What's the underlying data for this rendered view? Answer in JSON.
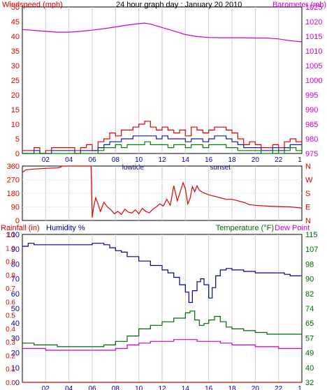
{
  "page": {
    "title": "24 hour graph day : January 20 2010"
  },
  "colors": {
    "windspeed": "#dd0000",
    "windspeed_avg": "#1a1aa6",
    "windspeed_low": "#008000",
    "barometer": "#cc00cc",
    "direction": "#dd0000",
    "humidity": "#000099",
    "temperature": "#006600",
    "dewpoint": "#cc00cc",
    "rainfall": "#dd0000",
    "grid": "#cccccc",
    "frame": "#000000"
  },
  "x_axis": {
    "tick_labels": [
      "02",
      "04",
      "06",
      "08",
      "10",
      "12",
      "14",
      "16",
      "18",
      "20",
      "22"
    ],
    "tick_hours": [
      2,
      4,
      6,
      8,
      10,
      12,
      14,
      16,
      18,
      20,
      22
    ],
    "end_hour": 24,
    "end_label": "1",
    "markers": [
      {
        "label": "lowtide",
        "hour": 9.5
      },
      {
        "label": "sunset",
        "hour": 17.0
      }
    ]
  },
  "chart_data": [
    {
      "type": "line",
      "title": "24 hour graph day : January 20 2010",
      "ylabel": "Windspeed (mph)",
      "y2label": "Barometer (mb)",
      "ylim": [
        0,
        50
      ],
      "ylim2": [
        975,
        1025
      ],
      "yticks": [
        "0",
        "5",
        "10",
        "15",
        "20",
        "25",
        "30",
        "35",
        "40",
        "45",
        "50"
      ],
      "y2ticks": [
        "975",
        "980",
        "985",
        "990",
        "995",
        "1000",
        "1005",
        "1010",
        "1015",
        "1020",
        "1025"
      ],
      "series": [
        {
          "axis": "left",
          "x": [
            0,
            0.5,
            1,
            1.5,
            2,
            2.5,
            3,
            3.5,
            4,
            4.5,
            5,
            5.5,
            6,
            6.5,
            7,
            7.5,
            8,
            8.5,
            9,
            9.5,
            10,
            10.5,
            11,
            11.5,
            12,
            12.5,
            13,
            13.5,
            14,
            14.5,
            15,
            15.5,
            16,
            16.5,
            17,
            17.5,
            18,
            18.5,
            19,
            19.5,
            20,
            20.5,
            21,
            21.5,
            22,
            22.5,
            23,
            23.5,
            24
          ],
          "values": [
            1,
            1,
            2,
            0,
            1,
            2,
            2,
            2,
            2,
            1,
            2,
            3,
            1,
            4,
            5,
            7,
            6,
            8,
            8,
            9,
            10,
            11,
            9,
            8,
            9,
            8,
            7,
            8,
            6,
            9,
            8,
            7,
            8,
            9,
            9,
            8,
            7,
            5,
            3,
            4,
            3,
            2,
            2,
            3,
            2,
            4,
            5,
            4,
            4
          ]
        },
        {
          "axis": "left",
          "x": [
            0,
            0.5,
            1,
            1.5,
            2,
            2.5,
            3,
            3.5,
            4,
            4.5,
            5,
            5.5,
            6,
            6.5,
            7,
            7.5,
            8,
            8.5,
            9,
            9.5,
            10,
            10.5,
            11,
            11.5,
            12,
            12.5,
            13,
            13.5,
            14,
            14.5,
            15,
            15.5,
            16,
            16.5,
            17,
            17.5,
            18,
            18.5,
            19,
            19.5,
            20,
            20.5,
            21,
            21.5,
            22,
            22.5,
            23,
            23.5,
            24
          ],
          "values": [
            0,
            0,
            1,
            0,
            0,
            1,
            1,
            1,
            1,
            0,
            1,
            1,
            1,
            2,
            3,
            4,
            4,
            5,
            5,
            6,
            6,
            6,
            6,
            5,
            6,
            5,
            5,
            5,
            4,
            5,
            5,
            4,
            5,
            6,
            6,
            5,
            4,
            3,
            2,
            2,
            2,
            1,
            1,
            2,
            1,
            2,
            3,
            3,
            3
          ]
        },
        {
          "axis": "left",
          "x": [
            0,
            0.5,
            1,
            1.5,
            2,
            2.5,
            3,
            3.5,
            4,
            4.5,
            5,
            5.5,
            6,
            6.5,
            7,
            7.5,
            8,
            8.5,
            9,
            9.5,
            10,
            10.5,
            11,
            11.5,
            12,
            12.5,
            13,
            13.5,
            14,
            14.5,
            15,
            15.5,
            16,
            16.5,
            17,
            17.5,
            18,
            18.5,
            19,
            19.5,
            20,
            20.5,
            21,
            21.5,
            22,
            22.5,
            23,
            23.5,
            24
          ],
          "values": [
            0,
            0,
            0,
            0,
            0,
            0,
            0,
            0,
            0,
            0,
            0,
            0,
            0,
            1,
            2,
            2,
            3,
            2,
            3,
            3,
            3,
            4,
            3,
            3,
            3,
            2,
            3,
            3,
            2,
            3,
            3,
            2,
            3,
            3,
            3,
            2,
            2,
            1,
            1,
            1,
            1,
            0,
            0,
            1,
            0,
            1,
            2,
            1,
            1
          ]
        },
        {
          "axis": "right",
          "x": [
            0,
            1,
            2,
            3,
            4,
            5,
            6,
            7,
            8,
            9,
            10,
            10.5,
            11,
            12,
            13,
            14,
            15,
            16,
            17,
            18,
            19,
            20,
            21,
            22,
            23,
            24
          ],
          "values": [
            1017.3,
            1017.0,
            1016.7,
            1016.4,
            1016.4,
            1016.7,
            1017.1,
            1017.6,
            1018.2,
            1018.8,
            1019.3,
            1019.5,
            1019.2,
            1018.0,
            1016.8,
            1015.6,
            1014.9,
            1014.6,
            1014.5,
            1014.5,
            1014.5,
            1014.4,
            1014.4,
            1014.1,
            1013.5,
            1013.1
          ]
        }
      ]
    },
    {
      "type": "line",
      "ylim": [
        0,
        360
      ],
      "yticks": [
        "0",
        "90",
        "180",
        "270",
        "360"
      ],
      "y2ticks": [
        "N",
        "W",
        "S",
        "E",
        "N"
      ],
      "series": [
        {
          "axis": "left",
          "x": [
            0,
            0.3,
            1,
            2,
            3,
            3.3,
            3.4,
            5.9,
            6.0,
            6.1,
            6.3,
            6.5,
            6.7,
            7.0,
            7.3,
            7.6,
            7.9,
            8.2,
            8.5,
            8.8,
            9.1,
            9.4,
            9.7,
            10.0,
            10.3,
            10.6,
            10.9,
            11.2,
            11.5,
            11.8,
            12.1,
            12.4,
            12.7,
            13.0,
            13.3,
            13.6,
            13.8,
            14.0,
            14.2,
            14.4,
            14.6,
            14.8,
            15.0,
            15.2,
            15.5,
            16.0,
            16.5,
            17.0,
            17.5,
            18.0,
            18.5,
            19.0,
            19.5,
            20.0,
            21.0,
            22.0,
            23.0,
            24.0
          ],
          "values": [
            318,
            335,
            340,
            345,
            348,
            352,
            360,
            360,
            20,
            80,
            150,
            110,
            60,
            120,
            90,
            70,
            45,
            60,
            40,
            75,
            55,
            50,
            70,
            45,
            80,
            60,
            50,
            75,
            90,
            110,
            95,
            140,
            100,
            230,
            130,
            200,
            250,
            210,
            110,
            145,
            225,
            190,
            230,
            200,
            185,
            170,
            160,
            150,
            140,
            140,
            130,
            120,
            105,
            100,
            95,
            92,
            90,
            82
          ]
        }
      ]
    },
    {
      "type": "line",
      "ylabel": "Rainfall (in)",
      "ylabel_b": "Humidity %",
      "y2label": "Temperature (°F)",
      "y2label_b": "Dew Point",
      "ylim": [
        0,
        100
      ],
      "ylim_rain": [
        0,
        1.1
      ],
      "ylim2": [
        32,
        115
      ],
      "yticks_humidity": [
        "0",
        "10",
        "20",
        "30",
        "40",
        "50",
        "60",
        "70",
        "80",
        "90",
        "100"
      ],
      "yticks_rain": [
        "0.0",
        "0.1",
        "0.2",
        "0.3",
        "0.4",
        "0.5",
        "0.6",
        "0.7",
        "0.8",
        "0.9",
        "1.0",
        "1.1"
      ],
      "y2ticks": [
        "32",
        "40",
        "49",
        "57",
        "65",
        "74",
        "82",
        "90",
        "98",
        "107",
        "115"
      ],
      "series": [
        {
          "axis": "left",
          "x": [
            0,
            0.5,
            1,
            2,
            3,
            4,
            5,
            6,
            7,
            7.5,
            8,
            8.5,
            9,
            10,
            11,
            12,
            12.5,
            13,
            13.5,
            14,
            14.3,
            14.6,
            15,
            15.3,
            15.6,
            16,
            16.3,
            16.6,
            17,
            17.5,
            18,
            19,
            20,
            21,
            22,
            22.5,
            23,
            24
          ],
          "values": [
            92,
            94,
            93,
            93,
            93,
            93,
            93,
            94,
            93,
            91,
            89,
            88,
            85,
            82,
            79,
            76,
            74,
            71,
            66,
            61,
            54,
            62,
            68,
            70,
            66,
            57,
            64,
            72,
            76,
            77,
            76,
            75,
            74,
            74,
            74,
            73,
            72,
            72
          ]
        },
        {
          "axis": "right",
          "x": [
            0,
            1,
            2,
            3,
            4,
            5,
            6,
            6.5,
            7,
            8,
            9,
            10,
            11,
            12,
            13,
            14,
            14.4,
            14.8,
            15.2,
            15.6,
            16,
            16.5,
            17,
            17.5,
            18,
            19,
            20,
            21,
            22,
            23,
            24
          ],
          "values": [
            54,
            53,
            53,
            52,
            52,
            52,
            52,
            52,
            53,
            55,
            58,
            62,
            64,
            66,
            68,
            71,
            72,
            67,
            64,
            65,
            67,
            69,
            66,
            63,
            62,
            61,
            60,
            59,
            59,
            59,
            59
          ]
        },
        {
          "axis": "right",
          "x": [
            0,
            1,
            2,
            3,
            4,
            5,
            6,
            7,
            8,
            9,
            10,
            11,
            12,
            13,
            14,
            15,
            16,
            17,
            18,
            19,
            20,
            21,
            22,
            23,
            24
          ],
          "values": [
            51,
            51,
            50,
            50,
            50,
            50,
            50,
            50,
            51,
            53,
            54,
            55,
            55,
            56,
            56,
            55,
            55,
            54,
            53,
            53,
            52,
            52,
            51,
            51,
            51
          ]
        },
        {
          "axis": "left",
          "x": [
            0,
            24
          ],
          "values": [
            0,
            0
          ]
        }
      ]
    }
  ]
}
